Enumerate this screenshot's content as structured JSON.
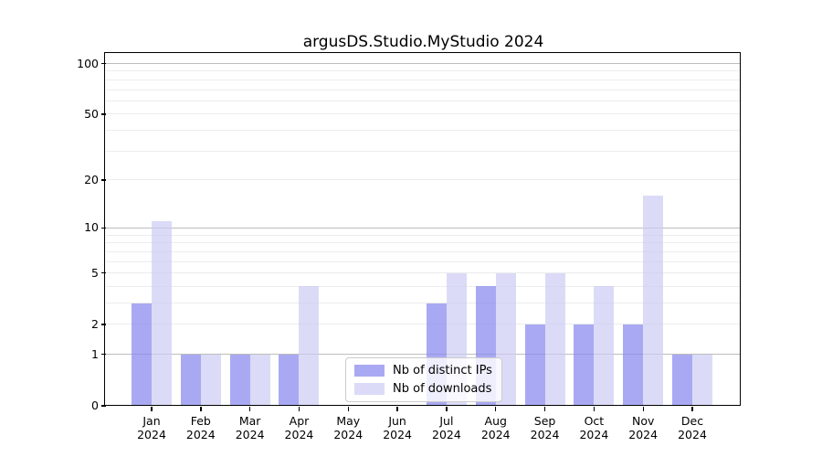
{
  "chart_data": {
    "type": "bar",
    "title": "argusDS.Studio.MyStudio 2024",
    "categories": [
      "Jan",
      "Feb",
      "Mar",
      "Apr",
      "May",
      "Jun",
      "Jul",
      "Aug",
      "Sep",
      "Oct",
      "Nov",
      "Dec"
    ],
    "x_year_label": "2024",
    "series": [
      {
        "name": "Nb of distinct IPs",
        "color": "rgba(136,136,238,0.72)",
        "values": [
          3,
          1,
          1,
          1,
          0,
          0,
          3,
          4,
          2,
          2,
          2,
          1
        ]
      },
      {
        "name": "Nb of downloads",
        "color": "rgba(204,204,245,0.70)",
        "values": [
          11,
          1,
          1,
          4,
          0,
          0,
          5,
          5,
          5,
          4,
          16,
          1
        ]
      }
    ],
    "yscale": "log1p",
    "yticks": [
      0,
      1,
      2,
      5,
      10,
      20,
      50,
      100
    ],
    "major_grid_values": [
      1,
      10,
      100
    ],
    "minor_grid_multiples": [
      2,
      3,
      4,
      5,
      6,
      7,
      8,
      9
    ],
    "ylim": [
      0,
      114
    ],
    "grid": true,
    "legend_position": "lower center"
  },
  "colors": {
    "grid_major": "#bdbdbd",
    "grid_minor": "#ececec",
    "spine": "#000000",
    "background": "#ffffff"
  }
}
